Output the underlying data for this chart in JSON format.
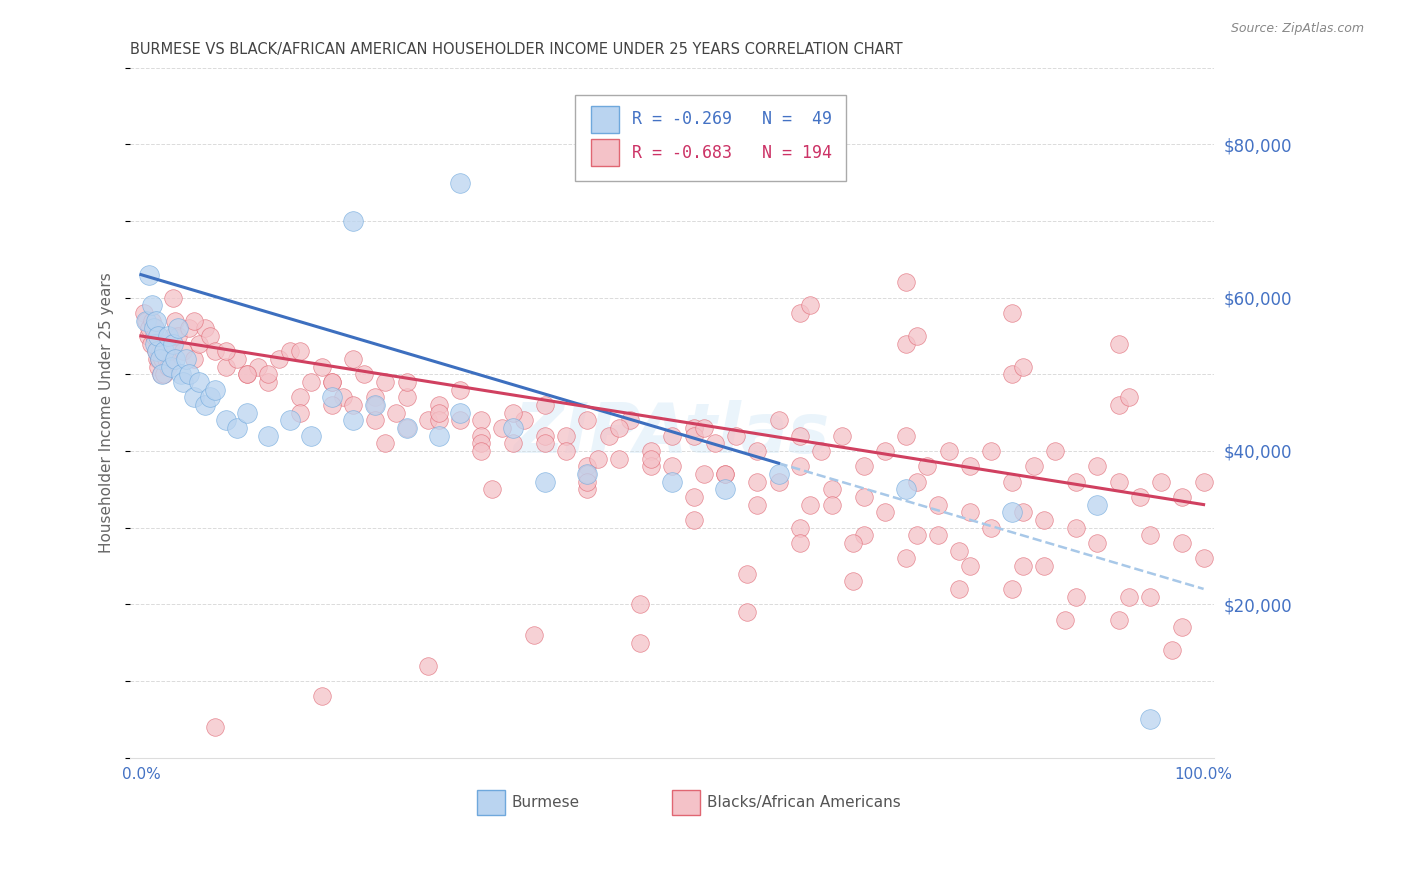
{
  "title": "BURMESE VS BLACK/AFRICAN AMERICAN HOUSEHOLDER INCOME UNDER 25 YEARS CORRELATION CHART",
  "source": "Source: ZipAtlas.com",
  "ylabel": "Householder Income Under 25 years",
  "yaxis_labels": [
    "$80,000",
    "$60,000",
    "$40,000",
    "$20,000"
  ],
  "yaxis_values": [
    80000,
    60000,
    40000,
    20000
  ],
  "legend_label_blue": "Burmese",
  "legend_label_pink": "Blacks/African Americans",
  "blue_fill": "#bad4f0",
  "blue_edge": "#6fa8dc",
  "blue_line": "#3d6fbf",
  "pink_fill": "#f4c2c8",
  "pink_edge": "#e06672",
  "pink_line": "#d04060",
  "dash_color": "#a8c8e8",
  "grid_color": "#cccccc",
  "title_color": "#434343",
  "label_color": "#4472c4",
  "watermark": "ZIPAtlas",
  "ylim": [
    0,
    90000
  ],
  "blue_x": [
    0.005,
    0.008,
    0.01,
    0.012,
    0.013,
    0.014,
    0.015,
    0.016,
    0.018,
    0.02,
    0.022,
    0.025,
    0.028,
    0.03,
    0.032,
    0.035,
    0.038,
    0.04,
    0.042,
    0.045,
    0.05,
    0.055,
    0.06,
    0.065,
    0.07,
    0.08,
    0.09,
    0.1,
    0.12,
    0.14,
    0.16,
    0.18,
    0.2,
    0.22,
    0.25,
    0.28,
    0.3,
    0.35,
    0.38,
    0.42,
    0.5,
    0.55,
    0.6,
    0.72,
    0.82,
    0.9,
    0.95,
    0.2,
    0.3
  ],
  "blue_y": [
    57000,
    63000,
    59000,
    56000,
    54000,
    57000,
    53000,
    55000,
    52000,
    50000,
    53000,
    55000,
    51000,
    54000,
    52000,
    56000,
    50000,
    49000,
    52000,
    50000,
    47000,
    49000,
    46000,
    47000,
    48000,
    44000,
    43000,
    45000,
    42000,
    44000,
    42000,
    47000,
    44000,
    46000,
    43000,
    42000,
    45000,
    43000,
    36000,
    37000,
    36000,
    35000,
    37000,
    35000,
    32000,
    33000,
    5000,
    70000,
    75000
  ],
  "pink_x": [
    0.003,
    0.005,
    0.007,
    0.008,
    0.009,
    0.01,
    0.012,
    0.013,
    0.014,
    0.015,
    0.016,
    0.017,
    0.018,
    0.019,
    0.02,
    0.022,
    0.024,
    0.025,
    0.027,
    0.028,
    0.03,
    0.032,
    0.035,
    0.04,
    0.045,
    0.05,
    0.055,
    0.06,
    0.065,
    0.07,
    0.08,
    0.09,
    0.1,
    0.11,
    0.12,
    0.13,
    0.14,
    0.15,
    0.16,
    0.17,
    0.18,
    0.19,
    0.2,
    0.21,
    0.22,
    0.23,
    0.24,
    0.25,
    0.27,
    0.28,
    0.3,
    0.32,
    0.34,
    0.36,
    0.38,
    0.4,
    0.42,
    0.44,
    0.46,
    0.48,
    0.5,
    0.52,
    0.54,
    0.56,
    0.58,
    0.6,
    0.62,
    0.64,
    0.66,
    0.68,
    0.7,
    0.72,
    0.74,
    0.76,
    0.78,
    0.8,
    0.82,
    0.84,
    0.86,
    0.88,
    0.9,
    0.92,
    0.94,
    0.96,
    0.98,
    1.0,
    0.15,
    0.25,
    0.35,
    0.45,
    0.55,
    0.65,
    0.75,
    0.85,
    0.95,
    0.18,
    0.28,
    0.38,
    0.48,
    0.58,
    0.68,
    0.78,
    0.88,
    0.98,
    0.1,
    0.2,
    0.3,
    0.4,
    0.5,
    0.6,
    0.7,
    0.8,
    0.9,
    1.0,
    0.05,
    0.15,
    0.25,
    0.35,
    0.45,
    0.55,
    0.65,
    0.75,
    0.85,
    0.95,
    0.08,
    0.18,
    0.28,
    0.38,
    0.48,
    0.58,
    0.68,
    0.78,
    0.88,
    0.98,
    0.12,
    0.22,
    0.32,
    0.42,
    0.52,
    0.62,
    0.72,
    0.82,
    0.92,
    0.72,
    0.82,
    0.92,
    0.62,
    0.72,
    0.82,
    0.92,
    0.52,
    0.62,
    0.42,
    0.52,
    0.62,
    0.32,
    0.42,
    0.22,
    0.32,
    0.42,
    0.63,
    0.73,
    0.83,
    0.93,
    0.53,
    0.43,
    0.33,
    0.23,
    0.53,
    0.63,
    0.73,
    0.83,
    0.93,
    0.03,
    0.73,
    0.83,
    0.77,
    0.87,
    0.97,
    0.67,
    0.57,
    0.47,
    0.37,
    0.27,
    0.17,
    0.07,
    0.77,
    0.67,
    0.57,
    0.47
  ],
  "pink_y": [
    58000,
    57000,
    55000,
    56000,
    54000,
    57000,
    55000,
    56000,
    53000,
    52000,
    51000,
    52000,
    53000,
    50000,
    52000,
    50000,
    52000,
    51000,
    53000,
    54000,
    55000,
    57000,
    55000,
    53000,
    56000,
    52000,
    54000,
    56000,
    55000,
    53000,
    51000,
    52000,
    50000,
    51000,
    49000,
    52000,
    53000,
    47000,
    49000,
    51000,
    49000,
    47000,
    52000,
    50000,
    47000,
    49000,
    45000,
    47000,
    44000,
    46000,
    48000,
    44000,
    43000,
    44000,
    46000,
    42000,
    44000,
    42000,
    44000,
    40000,
    42000,
    43000,
    41000,
    42000,
    40000,
    44000,
    42000,
    40000,
    42000,
    38000,
    40000,
    42000,
    38000,
    40000,
    38000,
    40000,
    36000,
    38000,
    40000,
    36000,
    38000,
    36000,
    34000,
    36000,
    34000,
    36000,
    45000,
    43000,
    41000,
    39000,
    37000,
    35000,
    33000,
    31000,
    29000,
    46000,
    44000,
    42000,
    38000,
    36000,
    34000,
    32000,
    30000,
    28000,
    50000,
    46000,
    44000,
    40000,
    38000,
    36000,
    32000,
    30000,
    28000,
    26000,
    57000,
    53000,
    49000,
    45000,
    43000,
    37000,
    33000,
    29000,
    25000,
    21000,
    53000,
    49000,
    45000,
    41000,
    39000,
    33000,
    29000,
    25000,
    21000,
    17000,
    50000,
    46000,
    42000,
    38000,
    34000,
    30000,
    26000,
    22000,
    18000,
    62000,
    58000,
    54000,
    58000,
    54000,
    50000,
    46000,
    42000,
    38000,
    35000,
    31000,
    28000,
    41000,
    37000,
    44000,
    40000,
    36000,
    59000,
    55000,
    51000,
    47000,
    43000,
    39000,
    35000,
    41000,
    37000,
    33000,
    29000,
    25000,
    21000,
    60000,
    36000,
    32000,
    22000,
    18000,
    14000,
    28000,
    24000,
    20000,
    16000,
    12000,
    8000,
    4000,
    27000,
    23000,
    19000,
    15000
  ]
}
